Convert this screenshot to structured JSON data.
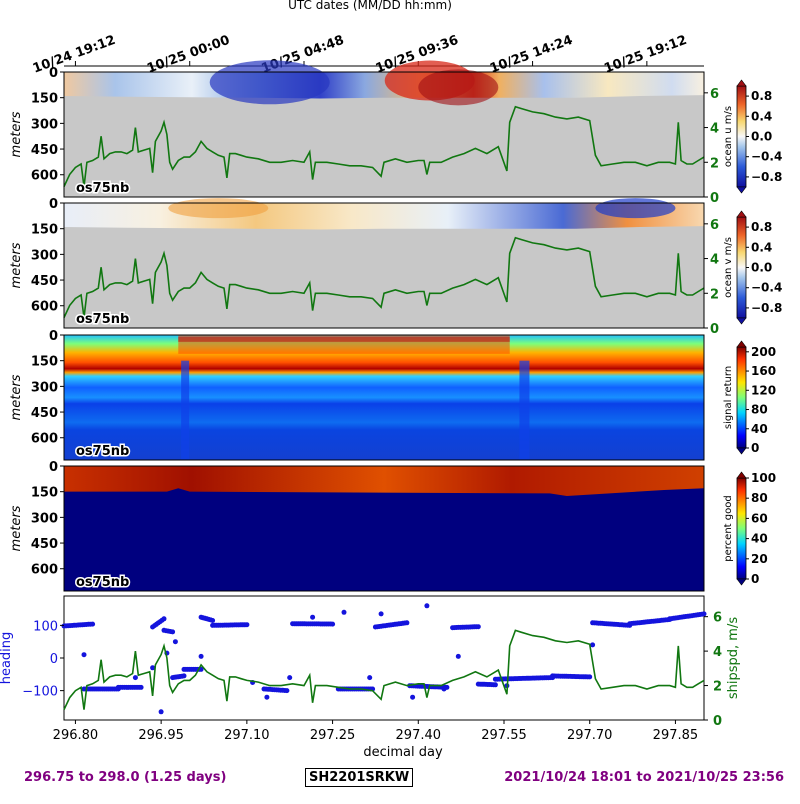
{
  "top_axis": {
    "title": "UTC dates (MM/DD hh:mm)",
    "ticks": [
      {
        "day": 296.8,
        "label": "10/24 19:12"
      },
      {
        "day": 297.0,
        "label": "10/25 00:00"
      },
      {
        "day": 297.2,
        "label": "10/25 04:48"
      },
      {
        "day": 297.4,
        "label": "10/25 09:36"
      },
      {
        "day": 297.6,
        "label": "10/25 14:24"
      },
      {
        "day": 297.8,
        "label": "10/25 19:12"
      }
    ]
  },
  "colors": {
    "grey_mask": "#c8c8c8",
    "shipspd_line": "#117711",
    "heading_dot": "#1414dd",
    "footer_text": "#800080",
    "shipspd_label": "#117711",
    "heading_label": "#1414dd",
    "deep_blue": "#00007f"
  },
  "chart_data": [
    {
      "type": "heatmap",
      "name": "ocean u",
      "ylabel": "meters",
      "yticks": [
        0,
        150,
        300,
        450,
        600
      ],
      "ylim": [
        0,
        730
      ],
      "instrument": "os75nb",
      "colorbar": {
        "label": "ocean u m/s",
        "cmap": "RdBu_r",
        "ticks": [
          "0.8",
          "0.4",
          "0.0",
          "−0.4",
          "−0.8"
        ],
        "range": [
          -1.0,
          1.0
        ]
      },
      "right_axis": {
        "ticks": [
          "6",
          "4",
          "2",
          "0"
        ],
        "range": [
          0,
          7.2
        ]
      }
    },
    {
      "type": "heatmap",
      "name": "ocean v",
      "ylabel": "meters",
      "yticks": [
        0,
        150,
        300,
        450,
        600
      ],
      "ylim": [
        0,
        730
      ],
      "instrument": "os75nb",
      "colorbar": {
        "label": "ocean v m/s",
        "cmap": "RdBu_r",
        "ticks": [
          "0.8",
          "0.4",
          "0.0",
          "−0.4",
          "−0.8"
        ],
        "range": [
          -1.0,
          1.0
        ]
      },
      "right_axis": {
        "ticks": [
          "6",
          "4",
          "2",
          "0"
        ],
        "range": [
          0,
          7.2
        ]
      }
    },
    {
      "type": "heatmap",
      "name": "signal return",
      "ylabel": "meters",
      "yticks": [
        0,
        150,
        300,
        450,
        600
      ],
      "ylim": [
        0,
        730
      ],
      "instrument": "os75nb",
      "colorbar": {
        "label": "signal return",
        "cmap": "jet",
        "ticks": [
          "200",
          "160",
          "120",
          "80",
          "40",
          "0"
        ],
        "range": [
          0,
          210
        ]
      }
    },
    {
      "type": "heatmap",
      "name": "percent good",
      "ylabel": "meters",
      "yticks": [
        0,
        150,
        300,
        450,
        600
      ],
      "ylim": [
        0,
        730
      ],
      "instrument": "os75nb",
      "colorbar": {
        "label": "percent good",
        "cmap": "jet",
        "ticks": [
          "100",
          "80",
          "60",
          "40",
          "20",
          "0"
        ],
        "range": [
          0,
          100
        ]
      }
    },
    {
      "type": "scatter",
      "name": "heading and ship speed",
      "xlabel": "decimal day",
      "xticks": [
        "296.80",
        "296.95",
        "297.10",
        "297.25",
        "297.40",
        "297.55",
        "297.70",
        "297.85"
      ],
      "xlim": [
        296.78,
        297.9
      ],
      "left_axis": {
        "label": "heading",
        "ticks": [
          "100",
          "0",
          "−100"
        ],
        "range": [
          -190,
          190
        ]
      },
      "right_axis": {
        "label": "shipspd, m/s",
        "ticks": [
          "6",
          "4",
          "2",
          "0"
        ],
        "range": [
          0,
          7.2
        ]
      }
    }
  ],
  "xlim": [
    296.78,
    297.9
  ],
  "shipspd_series": {
    "name": "shipspd",
    "x": [
      296.78,
      296.79,
      296.8,
      296.81,
      296.815,
      296.82,
      296.83,
      296.84,
      296.845,
      296.85,
      296.86,
      296.87,
      296.88,
      296.89,
      296.9,
      296.905,
      296.91,
      296.92,
      296.93,
      296.935,
      296.94,
      296.95,
      296.955,
      296.96,
      296.965,
      296.97,
      296.98,
      296.99,
      297.0,
      297.01,
      297.02,
      297.03,
      297.04,
      297.05,
      297.06,
      297.065,
      297.07,
      297.08,
      297.09,
      297.1,
      297.12,
      297.14,
      297.16,
      297.18,
      297.2,
      297.21,
      297.215,
      297.22,
      297.24,
      297.26,
      297.28,
      297.3,
      297.32,
      297.335,
      297.34,
      297.36,
      297.38,
      297.4,
      297.41,
      297.415,
      297.42,
      297.44,
      297.46,
      297.48,
      297.5,
      297.52,
      297.54,
      297.555,
      297.56,
      297.57,
      297.58,
      297.6,
      297.62,
      297.64,
      297.66,
      297.68,
      297.7,
      297.71,
      297.72,
      297.74,
      297.76,
      297.78,
      297.8,
      297.82,
      297.84,
      297.85,
      297.855,
      297.86,
      297.865,
      297.87,
      297.88,
      297.89,
      297.9
    ],
    "y": [
      0.6,
      1.3,
      1.7,
      1.9,
      0.6,
      2.0,
      2.1,
      2.3,
      3.5,
      2.2,
      2.5,
      2.6,
      2.6,
      2.5,
      2.7,
      4.0,
      2.6,
      2.7,
      2.8,
      1.4,
      3.2,
      3.8,
      4.3,
      3.6,
      2.0,
      1.6,
      2.1,
      2.3,
      2.3,
      2.6,
      3.2,
      2.8,
      2.6,
      2.4,
      2.3,
      1.1,
      2.5,
      2.5,
      2.4,
      2.3,
      2.2,
      2.0,
      2.0,
      2.1,
      2.0,
      2.6,
      1.0,
      2.0,
      2.0,
      1.9,
      1.8,
      1.8,
      1.7,
      1.2,
      2.0,
      2.2,
      2.0,
      2.1,
      2.1,
      1.3,
      2.0,
      2.0,
      2.3,
      2.5,
      2.8,
      2.5,
      2.9,
      1.5,
      4.3,
      5.2,
      5.1,
      4.9,
      4.8,
      4.6,
      4.5,
      4.6,
      4.4,
      2.4,
      1.8,
      1.9,
      2.0,
      2.0,
      1.8,
      2.0,
      2.0,
      1.9,
      4.3,
      2.1,
      2.0,
      1.9,
      1.9,
      2.1,
      2.3
    ]
  },
  "heading_segments": [
    {
      "x0": 296.78,
      "x1": 296.83,
      "y0": 98,
      "y1": 104
    },
    {
      "x0": 296.815,
      "x1": 296.875,
      "y0": -95,
      "y1": -95
    },
    {
      "x0": 296.875,
      "x1": 296.915,
      "y0": -90,
      "y1": -90
    },
    {
      "x0": 296.935,
      "x1": 296.955,
      "y0": 95,
      "y1": 120
    },
    {
      "x0": 296.955,
      "x1": 296.97,
      "y0": 85,
      "y1": 80
    },
    {
      "x0": 296.97,
      "x1": 296.99,
      "y0": -60,
      "y1": -55
    },
    {
      "x0": 296.99,
      "x1": 297.02,
      "y0": -35,
      "y1": -35
    },
    {
      "x0": 297.02,
      "x1": 297.04,
      "y0": 125,
      "y1": 115
    },
    {
      "x0": 297.04,
      "x1": 297.1,
      "y0": 100,
      "y1": 102
    },
    {
      "x0": 297.13,
      "x1": 297.17,
      "y0": -95,
      "y1": -100
    },
    {
      "x0": 297.18,
      "x1": 297.25,
      "y0": 105,
      "y1": 104
    },
    {
      "x0": 297.26,
      "x1": 297.32,
      "y0": -95,
      "y1": -95
    },
    {
      "x0": 297.325,
      "x1": 297.38,
      "y0": 95,
      "y1": 108
    },
    {
      "x0": 297.385,
      "x1": 297.45,
      "y0": -85,
      "y1": -90
    },
    {
      "x0": 297.46,
      "x1": 297.505,
      "y0": 93,
      "y1": 96
    },
    {
      "x0": 297.505,
      "x1": 297.535,
      "y0": -80,
      "y1": -82
    },
    {
      "x0": 297.535,
      "x1": 297.635,
      "y0": -65,
      "y1": -60
    },
    {
      "x0": 297.635,
      "x1": 297.7,
      "y0": -55,
      "y1": -58
    },
    {
      "x0": 297.705,
      "x1": 297.77,
      "y0": 108,
      "y1": 100
    },
    {
      "x0": 297.77,
      "x1": 297.84,
      "y0": 105,
      "y1": 118
    },
    {
      "x0": 297.84,
      "x1": 297.9,
      "y0": 120,
      "y1": 135
    }
  ],
  "heading_points": [
    {
      "x": 296.815,
      "y": 10
    },
    {
      "x": 296.905,
      "y": -60
    },
    {
      "x": 296.935,
      "y": -30
    },
    {
      "x": 296.95,
      "y": -165
    },
    {
      "x": 296.96,
      "y": 15
    },
    {
      "x": 296.975,
      "y": 50
    },
    {
      "x": 297.02,
      "y": 5
    },
    {
      "x": 297.11,
      "y": -75
    },
    {
      "x": 297.135,
      "y": -120
    },
    {
      "x": 297.175,
      "y": -60
    },
    {
      "x": 297.215,
      "y": 125
    },
    {
      "x": 297.27,
      "y": 140
    },
    {
      "x": 297.315,
      "y": -60
    },
    {
      "x": 297.335,
      "y": 135
    },
    {
      "x": 297.39,
      "y": -120
    },
    {
      "x": 297.415,
      "y": 160
    },
    {
      "x": 297.445,
      "y": -95
    },
    {
      "x": 297.47,
      "y": 5
    },
    {
      "x": 297.555,
      "y": -85
    },
    {
      "x": 297.705,
      "y": 40
    }
  ],
  "footer": {
    "range_text": "296.75 to 298.0 (1.25 days)",
    "cruise_id": "SH2201SRKW",
    "date_range": "2021/10/24 18:01 to 2021/10/25 23:56"
  }
}
